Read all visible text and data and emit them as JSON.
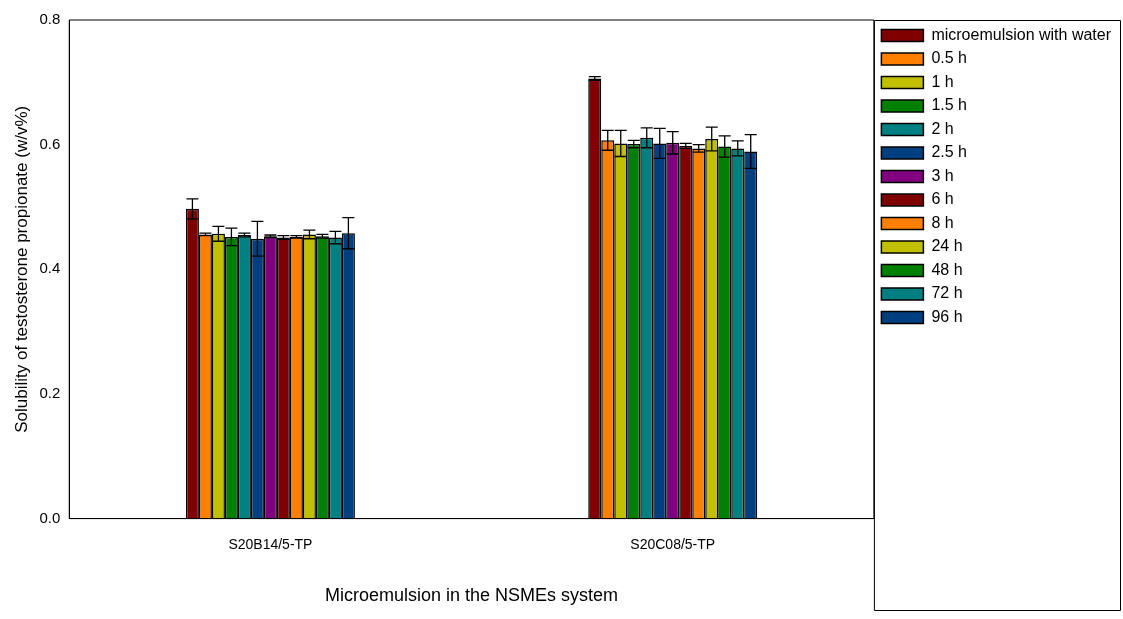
{
  "chart_data": {
    "type": "bar",
    "xlabel": "Microemulsion in the NSMEs system",
    "ylabel": "Solubility of testosterone propionate (w/v%)",
    "categories": [
      "S20B14/5-TP",
      "S20C08/5-TP"
    ],
    "ylim": [
      0,
      0.8
    ],
    "yticks": [
      {
        "value": 0,
        "label": "0.0"
      },
      {
        "value": 0.2,
        "label": "0.2"
      },
      {
        "value": 0.4,
        "label": "0.4"
      },
      {
        "value": 0.6,
        "label": "0.6"
      },
      {
        "value": 0.8,
        "label": "0.8"
      }
    ],
    "grid": false,
    "legend": "right",
    "series": [
      {
        "name": "microemulsion with water",
        "color": "#800000",
        "values": [
          0.497,
          0.706
        ],
        "errors": [
          0.016,
          0.003
        ]
      },
      {
        "name": "0.5 h",
        "color": "#ff8000",
        "values": [
          0.456,
          0.607
        ],
        "errors": [
          0.002,
          0.016
        ]
      },
      {
        "name": "1 h",
        "color": "#c0c000",
        "values": [
          0.457,
          0.602
        ],
        "errors": [
          0.012,
          0.021
        ]
      },
      {
        "name": "1.5 h",
        "color": "#008000",
        "values": [
          0.452,
          0.601
        ],
        "errors": [
          0.014,
          0.006
        ]
      },
      {
        "name": "2 h",
        "color": "#008080",
        "values": [
          0.455,
          0.611
        ],
        "errors": [
          0.003,
          0.016
        ]
      },
      {
        "name": "2.5 h",
        "color": "#004080",
        "values": [
          0.449,
          0.602
        ],
        "errors": [
          0.028,
          0.024
        ]
      },
      {
        "name": "3 h",
        "color": "#800080",
        "values": [
          0.453,
          0.603
        ],
        "errors": [
          0.002,
          0.018
        ]
      },
      {
        "name": "6 h",
        "color": "#800000",
        "values": [
          0.451,
          0.598
        ],
        "errors": [
          0.003,
          0.004
        ]
      },
      {
        "name": "8 h",
        "color": "#ff8000",
        "values": [
          0.452,
          0.594
        ],
        "errors": [
          0.002,
          0.006
        ]
      },
      {
        "name": "24 h",
        "color": "#c0c000",
        "values": [
          0.456,
          0.609
        ],
        "errors": [
          0.007,
          0.019
        ]
      },
      {
        "name": "48 h",
        "color": "#008000",
        "values": [
          0.453,
          0.597
        ],
        "errors": [
          0.003,
          0.017
        ]
      },
      {
        "name": "72 h",
        "color": "#008080",
        "values": [
          0.451,
          0.594
        ],
        "errors": [
          0.01,
          0.012
        ]
      },
      {
        "name": "96 h",
        "color": "#004080",
        "values": [
          0.458,
          0.589
        ],
        "errors": [
          0.025,
          0.027
        ]
      }
    ]
  }
}
